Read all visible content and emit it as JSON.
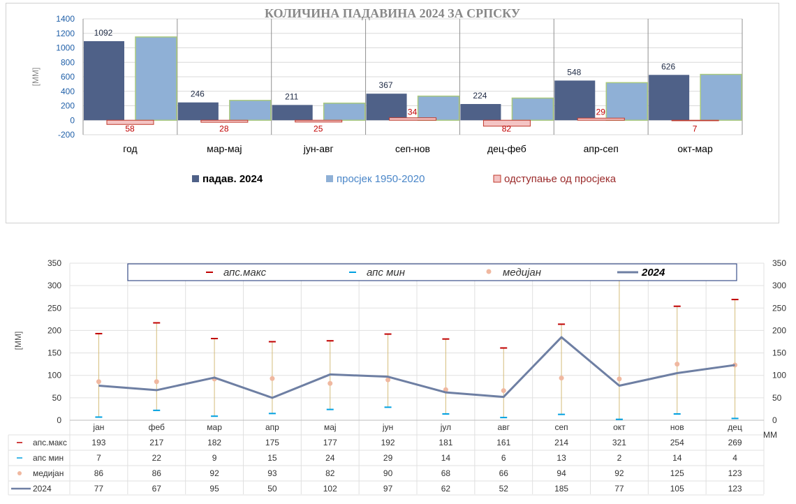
{
  "chart_data": [
    {
      "type": "bar",
      "title": "КОЛИЧИНА ПАДАВИНА 2024 ЗА СРПСКУ",
      "ylabel": "[MM]",
      "ylim": [
        -200,
        1400
      ],
      "yticks": [
        "1400",
        "1200",
        "1000",
        "800",
        "600",
        "400",
        "200",
        "0",
        "-200"
      ],
      "categories": [
        "год",
        "мар-мај",
        "јун-авг",
        "сеп-нов",
        "дец-феб",
        "апр-сеп",
        "окт-мар"
      ],
      "series": [
        {
          "name": "падав. 2024",
          "values": [
            1092,
            246,
            211,
            367,
            224,
            548,
            626
          ],
          "labels": [
            "1092",
            "246",
            "211",
            "367",
            "224",
            "548",
            "626"
          ]
        },
        {
          "name": "просјек 1950-2020",
          "values": [
            1150,
            274,
            236,
            333,
            306,
            519,
            633
          ]
        },
        {
          "name": "одступање од просјека",
          "values": [
            -58,
            -28,
            -25,
            34,
            -82,
            29,
            -7
          ],
          "labels": [
            "58",
            "28",
            "25",
            "34",
            "82",
            "29",
            "7"
          ]
        }
      ],
      "colors": {
        "precip": "#4f6188",
        "avg": "#8fb0d6",
        "avg_border": "#a9c97e",
        "dev": "#f4c4c4",
        "dev_border": "#c0392b"
      },
      "legend_position": "bottom",
      "grid": true
    },
    {
      "type": "line",
      "ylabel": "[MM]",
      "unit_label": "MM",
      "ylim": [
        0,
        350
      ],
      "yticks": [
        "350",
        "300",
        "250",
        "200",
        "150",
        "100",
        "50",
        "0"
      ],
      "categories": [
        "јан",
        "феб",
        "мар",
        "апр",
        "мај",
        "јун",
        "јул",
        "авг",
        "сеп",
        "окт",
        "нов",
        "дец"
      ],
      "series": [
        {
          "name": "апс.макс",
          "values": [
            193,
            217,
            182,
            175,
            177,
            192,
            181,
            161,
            214,
            321,
            254,
            269
          ]
        },
        {
          "name": "апс мин",
          "values": [
            7,
            22,
            9,
            15,
            24,
            29,
            14,
            6,
            13,
            2,
            14,
            4
          ]
        },
        {
          "name": "медијан",
          "values": [
            86,
            86,
            92,
            93,
            82,
            90,
            68,
            66,
            94,
            92,
            125,
            123
          ]
        },
        {
          "name": "2024",
          "values": [
            77,
            67,
            95,
            50,
            102,
            97,
            62,
            52,
            185,
            77,
            105,
            123
          ]
        }
      ],
      "legend_items": [
        "апс.макс",
        "апс мин",
        "медијан",
        "2024"
      ],
      "colors": {
        "max": "#c00000",
        "min": "#00a0e0",
        "median": "#f0b8a0",
        "line2024": "#6e7fa3",
        "whisker": "#d4bc7a"
      },
      "data_table": true,
      "grid": true
    }
  ]
}
